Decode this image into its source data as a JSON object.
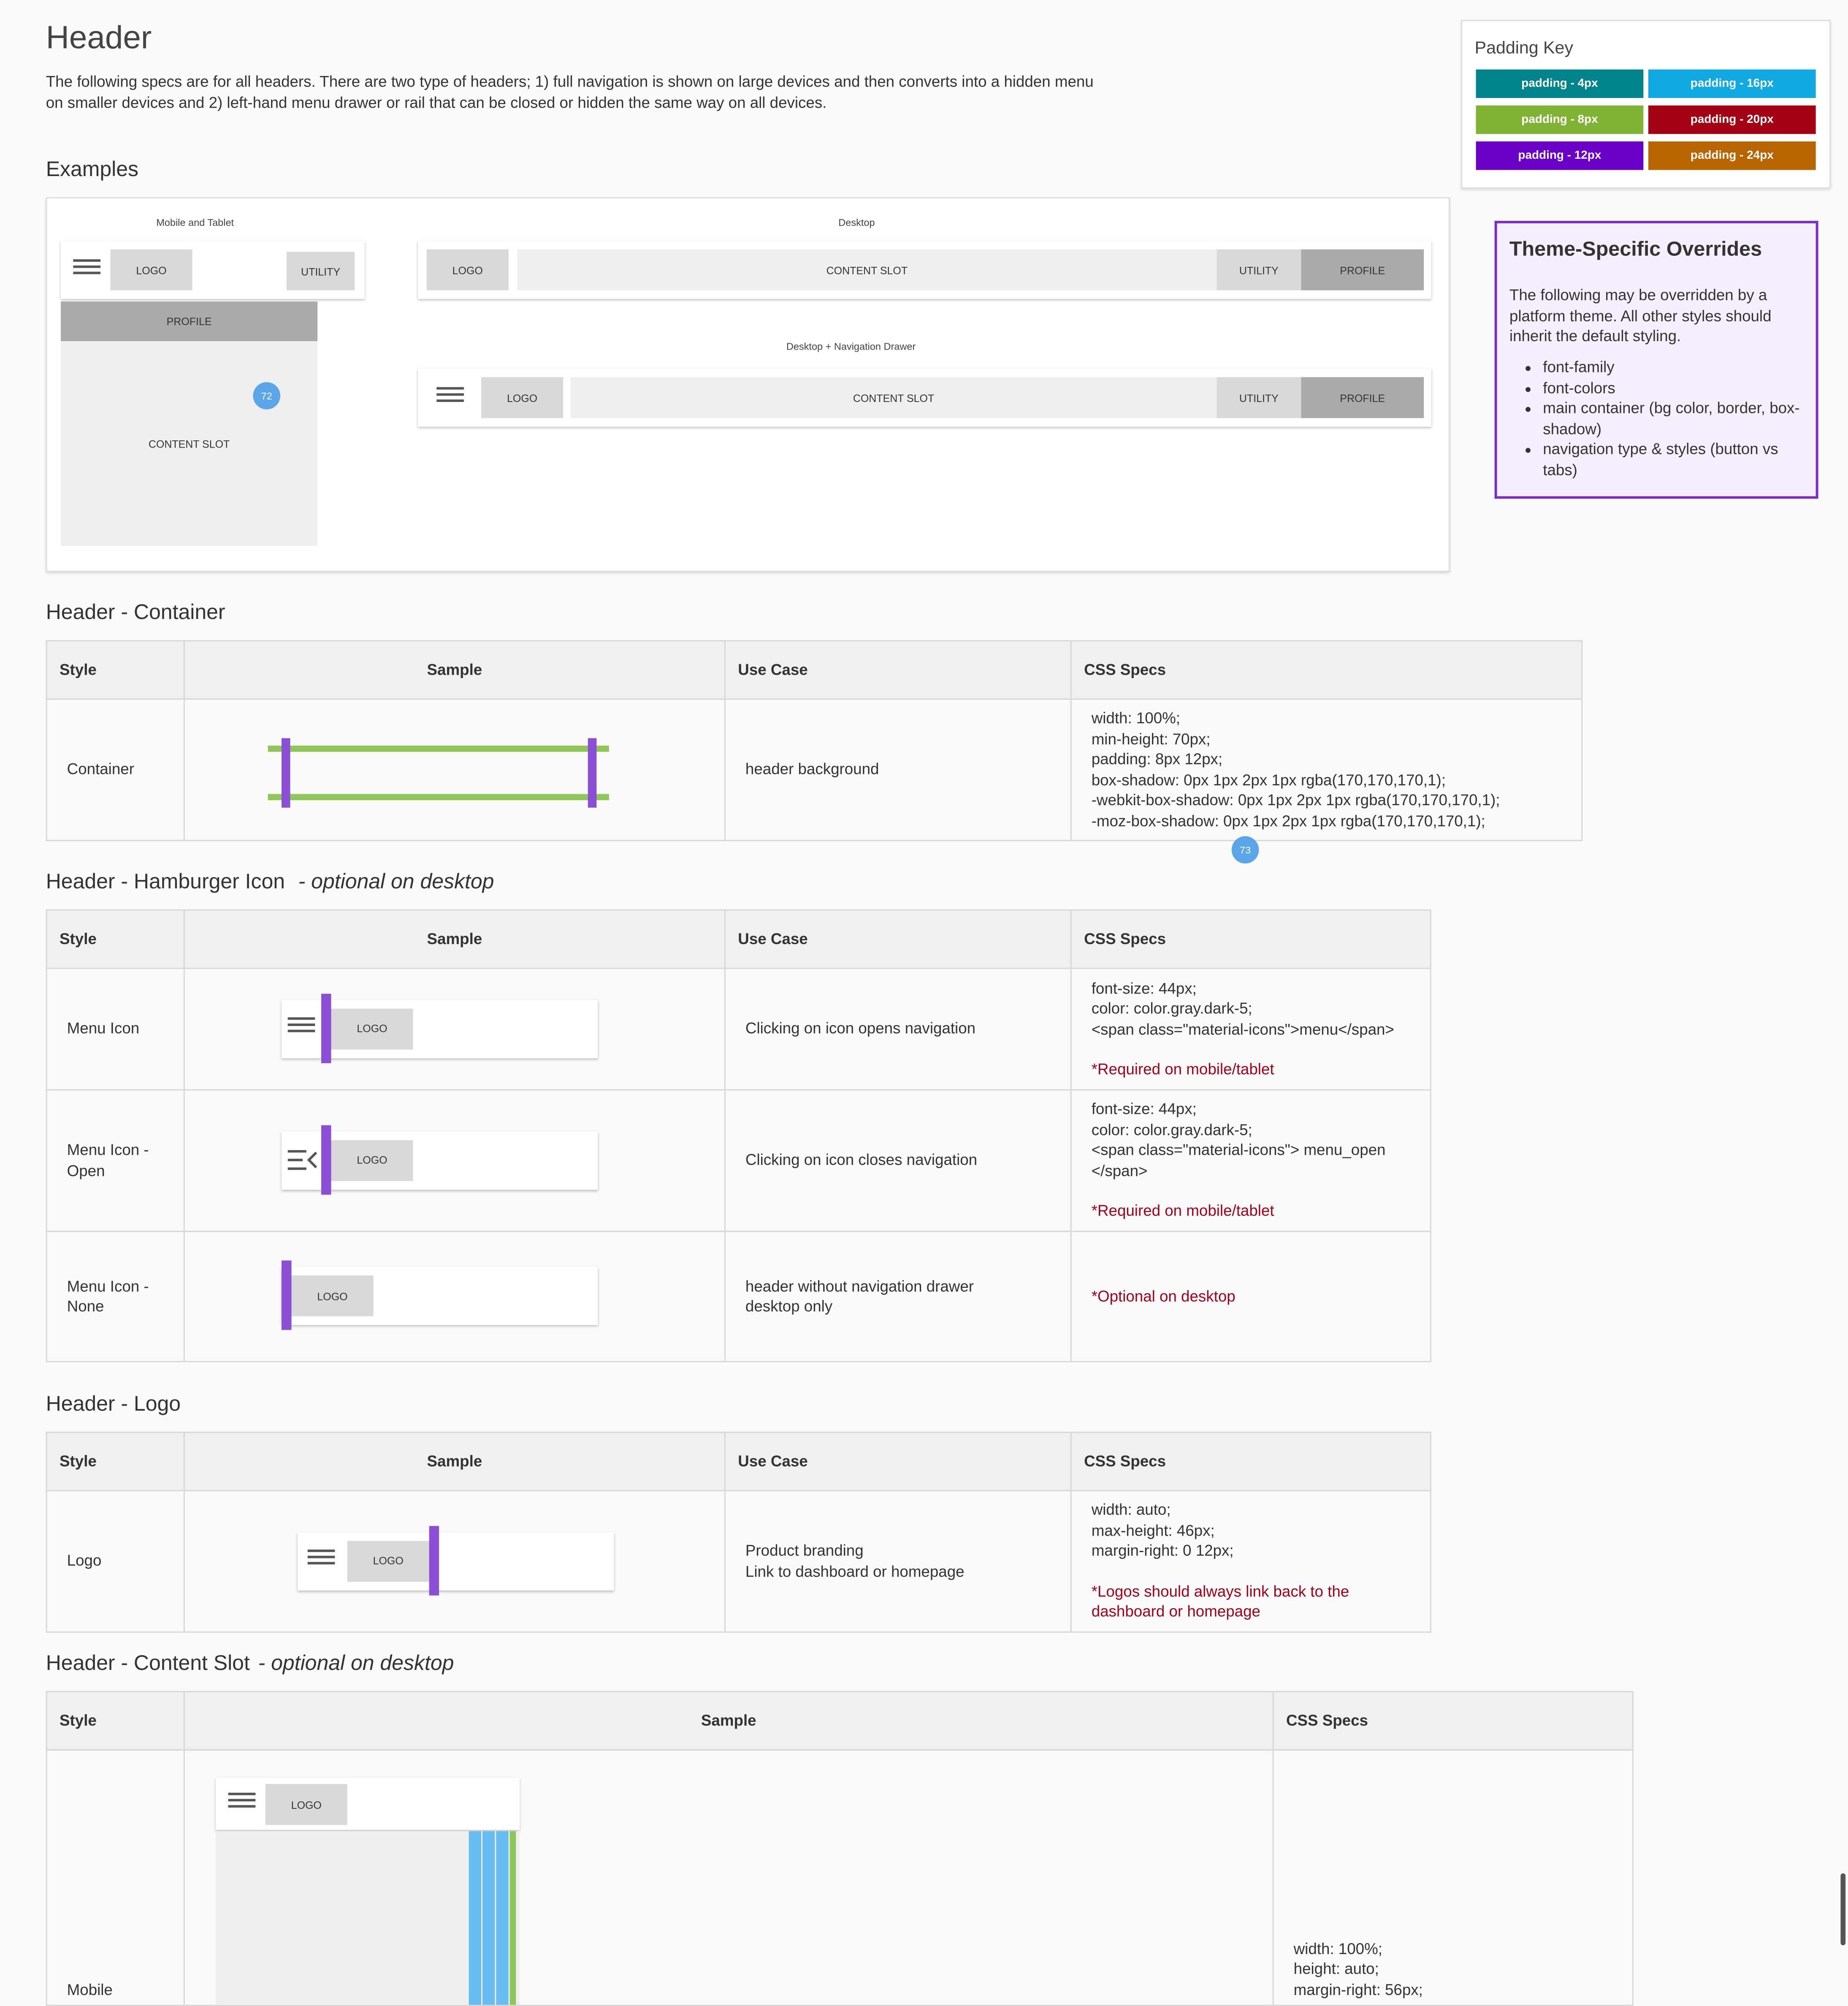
{
  "page": {
    "title": "Header",
    "intro": "The following specs are for all headers. There are two type of headers; 1) full navigation is shown on large devices and then converts into a hidden menu on smaller devices and 2) left-hand menu drawer or rail that can be closed or hidden the same way on all devices."
  },
  "padding_key": {
    "title": "Padding Key",
    "items": [
      {
        "label": "padding - 4px",
        "color": "#00838a"
      },
      {
        "label": "padding - 16px",
        "color": "#10a9e2"
      },
      {
        "label": "padding - 8px",
        "color": "#80b233"
      },
      {
        "label": "padding - 20px",
        "color": "#a30014"
      },
      {
        "label": "padding - 12px",
        "color": "#6a00c8"
      },
      {
        "label": "padding - 24px",
        "color": "#b86500"
      }
    ]
  },
  "overrides": {
    "title": "Theme-Specific Overrides",
    "body": "The following may be overridden by a platform theme. All other styles should inherit the default styling.",
    "items": [
      "font-family",
      "font-colors",
      "main container (bg color, border, box-shadow)",
      "navigation type & styles (button vs tabs)"
    ]
  },
  "examples": {
    "title": "Examples",
    "mobile_caption": "Mobile and Tablet",
    "desktop_caption": "Desktop",
    "drawer_caption": "Desktop + Navigation Drawer",
    "logo": "LOGO",
    "utility": "UTILITY",
    "profile": "PROFILE",
    "content_slot": "CONTENT SLOT",
    "badge1": "72",
    "badge2": "73"
  },
  "headers": {
    "style": "Style",
    "sample": "Sample",
    "use_case": "Use Case",
    "css": "CSS Specs"
  },
  "container": {
    "title": "Header - Container",
    "style": "Container",
    "use_case": "header background",
    "css": [
      "width: 100%;",
      "min-height: 70px;",
      "padding: 8px 12px;",
      "box-shadow: 0px 1px 2px 1px rgba(170,170,170,1);",
      "-webkit-box-shadow: 0px 1px 2px 1px rgba(170,170,170,1);",
      "-moz-box-shadow: 0px 1px 2px 1px rgba(170,170,170,1);"
    ]
  },
  "hamburger": {
    "title": "Header - Hamburger Icon",
    "title_suffix": "- optional on desktop",
    "rows": [
      {
        "style": "Menu Icon",
        "use_case": "Clicking on icon opens navigation",
        "css": [
          "font-size: 44px;",
          "color: color.gray.dark-5;",
          "<span class=\"material-icons\">menu</span>"
        ],
        "note": "*Required on mobile/tablet"
      },
      {
        "style1": "Menu Icon -",
        "style2": "Open",
        "use_case": "Clicking on icon closes navigation",
        "css": [
          "font-size: 44px;",
          "color: color.gray.dark-5;",
          "<span class=\"material-icons\"> menu_open",
          "</span>"
        ],
        "note": "*Required on mobile/tablet"
      },
      {
        "style1": "Menu Icon -",
        "style2": "None",
        "use_case1": "header without navigation drawer",
        "use_case2": "desktop only",
        "note": "*Optional on desktop"
      }
    ]
  },
  "logo_section": {
    "title": "Header - Logo",
    "style": "Logo",
    "use_case1": "Product branding",
    "use_case2": "Link to dashboard or homepage",
    "css": [
      "width: auto;",
      "max-height: 46px;",
      "margin-right: 0 12px;"
    ],
    "note1": "*Logos should always link back to the",
    "note2": "dashboard or homepage"
  },
  "content_slot": {
    "title": "Header - Content Slot",
    "title_suffix": "- optional on desktop",
    "style": "Mobile",
    "css": [
      "width: 100%;",
      "height: auto;",
      "margin-right: 56px;"
    ]
  }
}
